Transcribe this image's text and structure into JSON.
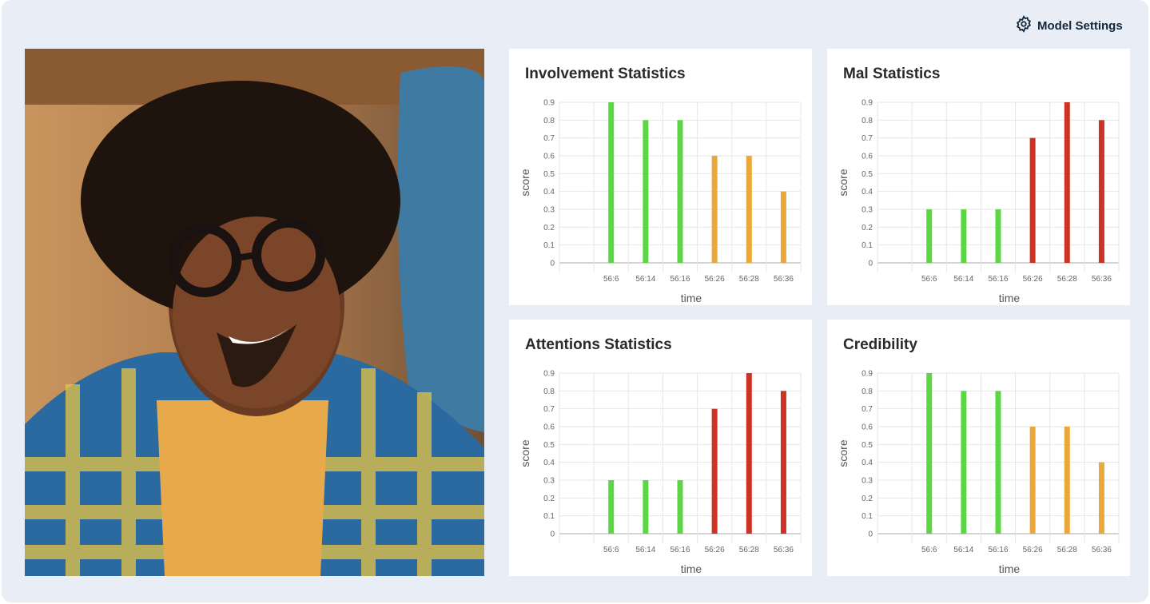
{
  "header": {
    "settings_label": "Model Settings",
    "settings_icon": "gear-icon"
  },
  "photo": {
    "alt": ""
  },
  "colors": {
    "green": "#5cd645",
    "orange": "#eba83a",
    "red": "#cc3325"
  },
  "chart_data": [
    {
      "type": "bar",
      "title": "Involvement Statistics",
      "xlabel": "time",
      "ylabel": "score",
      "categories": [
        "56:6",
        "56:14",
        "56:16",
        "56:26",
        "56:28",
        "56:36"
      ],
      "values": [
        0.9,
        0.8,
        0.8,
        0.6,
        0.6,
        0.4
      ],
      "bar_colors": [
        "green",
        "green",
        "green",
        "orange",
        "orange",
        "orange"
      ],
      "ylim": [
        0,
        0.9
      ],
      "yticks": [
        0,
        0.1,
        0.2,
        0.3,
        0.4,
        0.5,
        0.6,
        0.7,
        0.8,
        0.9
      ],
      "grid": true
    },
    {
      "type": "bar",
      "title": "Mal Statistics",
      "xlabel": "time",
      "ylabel": "score",
      "categories": [
        "56:6",
        "56:14",
        "56:16",
        "56:26",
        "56:28",
        "56:36"
      ],
      "values": [
        0.3,
        0.3,
        0.3,
        0.7,
        0.9,
        0.8
      ],
      "bar_colors": [
        "green",
        "green",
        "green",
        "red",
        "red",
        "red"
      ],
      "ylim": [
        0,
        0.9
      ],
      "yticks": [
        0,
        0.1,
        0.2,
        0.3,
        0.4,
        0.5,
        0.6,
        0.7,
        0.8,
        0.9
      ],
      "grid": true
    },
    {
      "type": "bar",
      "title": "Attentions Statistics",
      "xlabel": "time",
      "ylabel": "score",
      "categories": [
        "56:6",
        "56:14",
        "56:16",
        "56:26",
        "56:28",
        "56:36"
      ],
      "values": [
        0.3,
        0.3,
        0.3,
        0.7,
        0.9,
        0.8
      ],
      "bar_colors": [
        "green",
        "green",
        "green",
        "red",
        "red",
        "red"
      ],
      "ylim": [
        0,
        0.9
      ],
      "yticks": [
        0,
        0.1,
        0.2,
        0.3,
        0.4,
        0.5,
        0.6,
        0.7,
        0.8,
        0.9
      ],
      "grid": true
    },
    {
      "type": "bar",
      "title": "Credibility",
      "xlabel": "time",
      "ylabel": "score",
      "categories": [
        "56:6",
        "56:14",
        "56:16",
        "56:26",
        "56:28",
        "56:36"
      ],
      "values": [
        0.9,
        0.8,
        0.8,
        0.6,
        0.6,
        0.4
      ],
      "bar_colors": [
        "green",
        "green",
        "green",
        "orange",
        "orange",
        "orange"
      ],
      "ylim": [
        0,
        0.9
      ],
      "yticks": [
        0,
        0.1,
        0.2,
        0.3,
        0.4,
        0.5,
        0.6,
        0.7,
        0.8,
        0.9
      ],
      "grid": true
    }
  ]
}
